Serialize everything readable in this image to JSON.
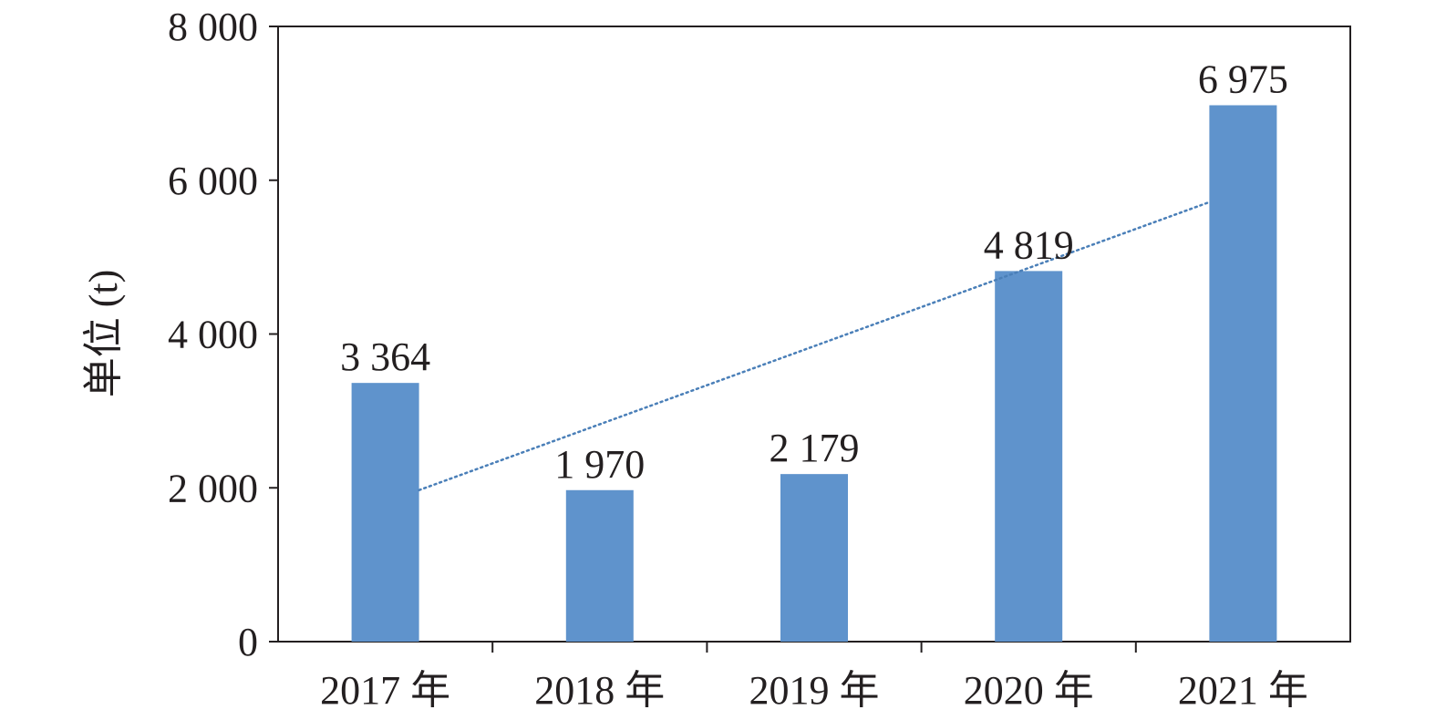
{
  "chart_data": {
    "type": "bar",
    "categories": [
      "2017 年",
      "2018 年",
      "2019 年",
      "2020 年",
      "2021 年"
    ],
    "values": [
      3364,
      1970,
      2179,
      4819,
      6975
    ],
    "data_labels": [
      "3 364",
      "1 970",
      "2 179",
      "4 819",
      "6 975"
    ],
    "ylabel": "单位 (t)",
    "xlabel": "",
    "ylim": [
      0,
      8000
    ],
    "yticks": [
      0,
      2000,
      4000,
      6000,
      8000
    ],
    "ytick_labels": [
      "0",
      "2 000",
      "4 000",
      "6 000",
      "8 000"
    ],
    "grid": false,
    "bar_color": "#5f93cc",
    "trendline": {
      "type": "linear",
      "style": "dotted",
      "color": "#4a7fb8",
      "start": [
        1,
        1970
      ],
      "end": [
        5,
        5715
      ]
    }
  }
}
